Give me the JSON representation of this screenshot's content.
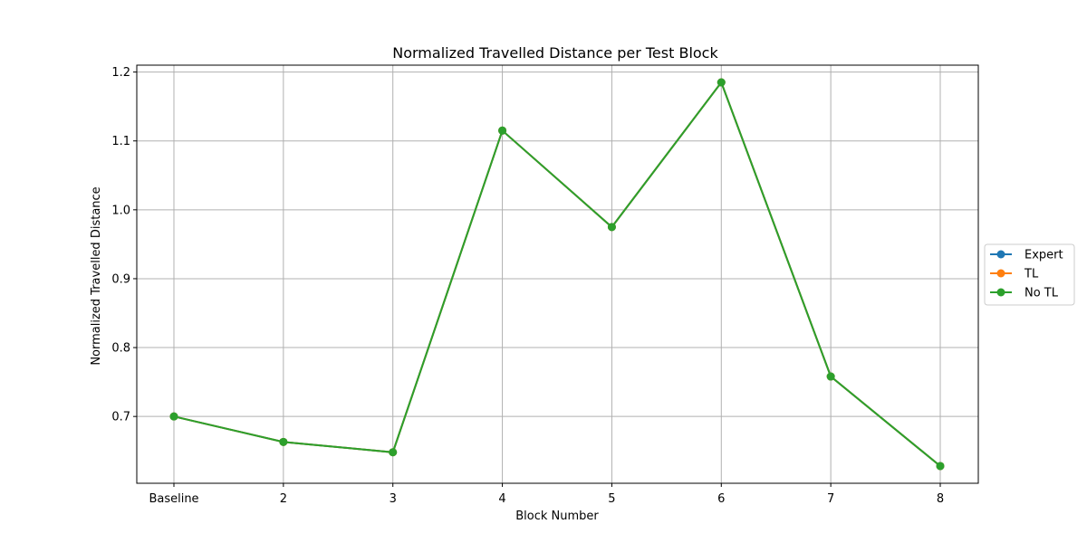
{
  "chart_data": {
    "type": "line",
    "title": "Normalized Travelled Distance per Test Block",
    "xlabel": "Block Number",
    "ylabel": "Normalized Travelled Distance",
    "categories": [
      "Baseline",
      "2",
      "3",
      "4",
      "5",
      "6",
      "7",
      "8"
    ],
    "ylim": [
      0.603,
      1.21
    ],
    "yticks": [
      0.7,
      0.8,
      0.9,
      1.0,
      1.1,
      1.2
    ],
    "ytick_labels": [
      "0.7",
      "0.8",
      "0.9",
      "1.0",
      "1.1",
      "1.2"
    ],
    "grid": true,
    "legend_position": "outside-right",
    "series": [
      {
        "name": "Expert",
        "color": "#1f77b4",
        "marker": "circle",
        "values": [
          0.7,
          0.663,
          0.648,
          1.115,
          0.975,
          1.185,
          0.758,
          0.628
        ]
      },
      {
        "name": "TL",
        "color": "#ff7f0e",
        "marker": "circle",
        "values": [
          0.7,
          0.663,
          0.648,
          1.115,
          0.975,
          1.185,
          0.758,
          0.628
        ]
      },
      {
        "name": "No TL",
        "color": "#2ca02c",
        "marker": "circle",
        "values": [
          0.7,
          0.663,
          0.648,
          1.115,
          0.975,
          1.185,
          0.758,
          0.628
        ]
      }
    ]
  }
}
